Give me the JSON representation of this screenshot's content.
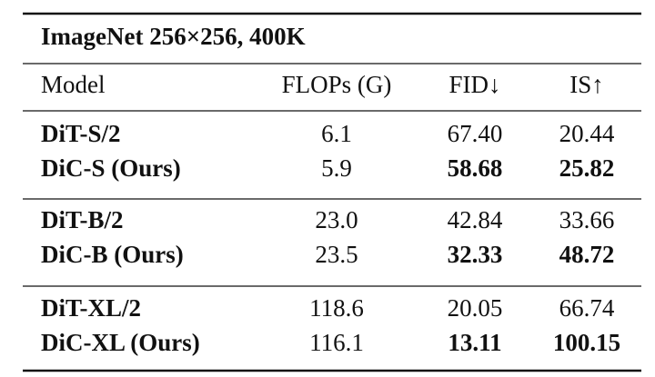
{
  "table": {
    "title": "ImageNet 256×256, 400K",
    "header": [
      "Model",
      "FLOPs (G)",
      "FID↓",
      "IS↑"
    ],
    "groups": [
      [
        [
          "DiT-S/2",
          "6.1",
          "67.40",
          "20.44"
        ],
        [
          "DiC-S (Ours)",
          "5.9",
          "58.68",
          "25.82"
        ]
      ],
      [
        [
          "DiT-B/2",
          "23.0",
          "42.84",
          "33.66"
        ],
        [
          "DiC-B (Ours)",
          "23.5",
          "32.33",
          "48.72"
        ]
      ],
      [
        [
          "DiT-XL/2",
          "118.6",
          "20.05",
          "66.74"
        ],
        [
          "DiC-XL (Ours)",
          "116.1",
          "13.11",
          "100.15"
        ]
      ]
    ]
  }
}
